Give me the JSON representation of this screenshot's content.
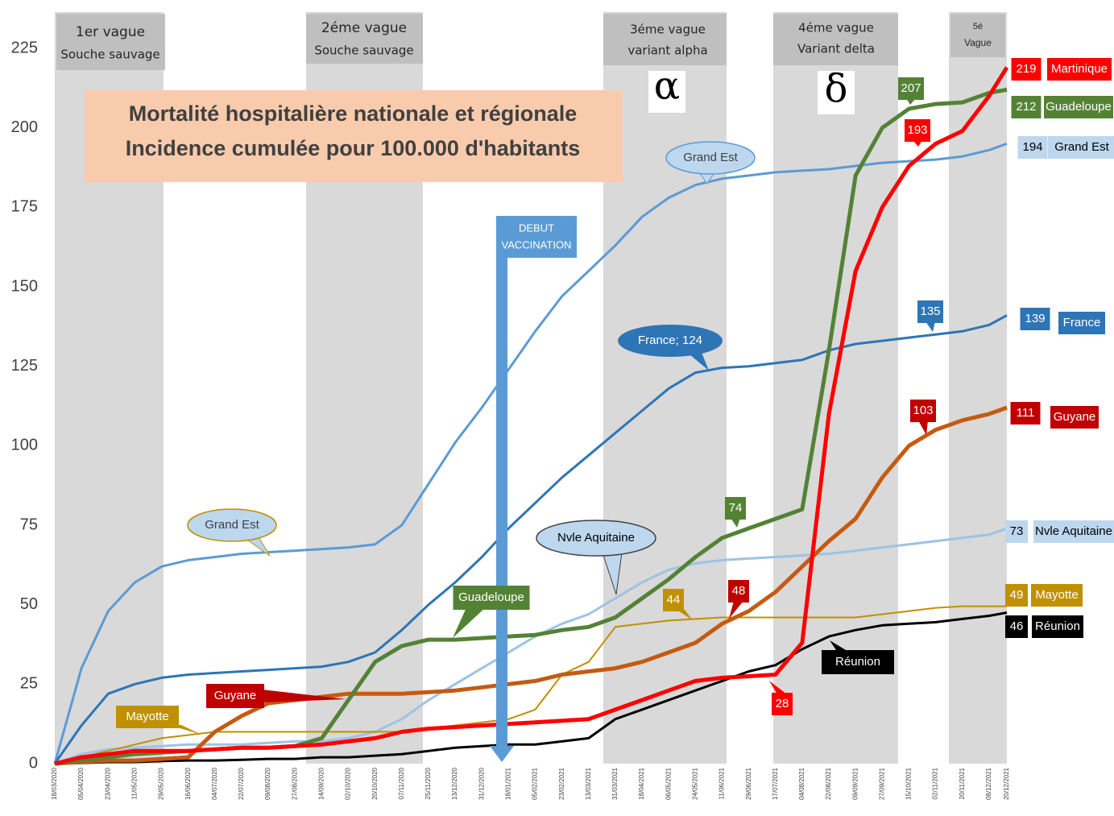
{
  "chart_data": {
    "type": "line",
    "title": [
      "Mortalité hospitalière nationale et régionale",
      "Incidence cumulée pour 100.000 d'habitants"
    ],
    "waves": [
      {
        "label": "1er vague",
        "sublabel": "Souche sauvage"
      },
      {
        "label": "2éme vague",
        "sublabel": "Souche sauvage"
      },
      {
        "label": "3éme vague",
        "sublabel": "variant alpha"
      },
      {
        "label": "4éme vague",
        "sublabel": "Variant delta"
      },
      {
        "label": "5é",
        "sublabel": "Vague"
      }
    ],
    "variants": [
      "α",
      "δ"
    ],
    "vaccination": [
      "DEBUT",
      "VACCINATION"
    ],
    "annotations": [
      "207",
      "193",
      "135",
      "74",
      "48",
      "44",
      "28",
      "103",
      "France; 124",
      "219",
      "212",
      "194",
      "139",
      "111",
      "73",
      "49",
      "46"
    ],
    "categories": [
      "18/03/2020",
      "05/04/2020",
      "23/04/2020",
      "11/05/2020",
      "29/05/2020",
      "16/06/2020",
      "04/07/2020",
      "22/07/2020",
      "09/08/2020",
      "27/08/2020",
      "14/09/2020",
      "02/10/2020",
      "20/10/2020",
      "07/11/2020",
      "25/11/2020",
      "13/12/2020",
      "31/12/2020",
      "18/01/2021",
      "05/02/2021",
      "23/02/2021",
      "13/03/2021",
      "31/03/2021",
      "18/04/2021",
      "06/05/2021",
      "24/05/2021",
      "11/06/2021",
      "29/06/2021",
      "17/07/2021",
      "04/08/2021",
      "22/08/2021",
      "09/09/2021",
      "27/09/2021",
      "15/10/2021",
      "02/11/2021",
      "20/11/2021",
      "08/12/2021",
      "20/12/2021"
    ],
    "series": [
      {
        "name": "Martinique",
        "color": "#ff0000",
        "values": [
          0,
          2,
          3,
          4,
          4,
          4,
          4.5,
          5,
          5,
          5.5,
          6,
          7,
          8,
          10,
          11,
          11.5,
          12,
          12.5,
          13,
          13.5,
          14,
          17,
          20,
          23,
          26,
          27,
          27.5,
          28,
          38,
          110,
          155,
          175,
          188,
          195,
          199,
          210,
          219
        ]
      },
      {
        "name": "Guadeloupe",
        "color": "#548235",
        "values": [
          0,
          1,
          2,
          3,
          3.5,
          4,
          4.5,
          5,
          5,
          5.5,
          8,
          20,
          32,
          37,
          39,
          39,
          39.5,
          40,
          40.5,
          42,
          43,
          46,
          52,
          58,
          65,
          71,
          74,
          77,
          80,
          130,
          185,
          200,
          206,
          207.5,
          208,
          211,
          212
        ]
      },
      {
        "name": "Grand Est",
        "color": "#5b9bd5",
        "values": [
          0,
          30,
          48,
          57,
          62,
          64,
          65,
          66,
          66.5,
          67,
          67.5,
          68,
          69,
          75,
          88,
          101,
          112,
          124,
          136,
          147,
          155,
          163,
          172,
          178,
          182,
          184,
          185,
          186,
          186.5,
          187,
          188,
          189,
          189.5,
          190,
          191,
          193,
          195
        ]
      },
      {
        "name": "France",
        "color": "#2e75b6",
        "values": [
          0,
          12,
          22,
          25,
          27,
          28,
          28.5,
          29,
          29.5,
          30,
          30.5,
          32,
          35,
          42,
          50,
          57,
          65,
          74,
          82,
          90,
          97,
          104,
          111,
          118,
          123,
          124.5,
          125,
          126,
          127,
          130,
          132,
          133,
          134,
          135,
          136,
          138,
          141
        ]
      },
      {
        "name": "Guyane",
        "color": "#c55a11",
        "values": [
          0,
          0.5,
          1,
          1,
          1.5,
          2,
          10,
          15,
          19,
          20,
          21,
          22,
          22,
          22,
          22.5,
          23,
          24,
          25,
          26,
          28,
          29,
          30,
          32,
          35,
          38,
          44,
          48,
          54,
          62,
          70,
          77,
          90,
          100,
          105,
          108,
          110,
          112
        ]
      },
      {
        "name": "Nvle Aquitaine",
        "color": "#9dc3e6",
        "values": [
          0,
          3,
          4.5,
          5,
          5.5,
          6,
          6,
          6,
          6.5,
          7,
          7,
          8,
          10,
          14,
          20,
          25,
          30,
          35,
          40,
          44,
          47,
          52,
          57,
          61,
          63,
          64,
          64.5,
          65,
          65.5,
          66,
          67,
          68,
          69,
          70,
          71,
          72,
          74
        ]
      },
      {
        "name": "Mayotte",
        "color": "#bf9000",
        "values": [
          0,
          2,
          4,
          6,
          8,
          9,
          10,
          10,
          10,
          10,
          10,
          10,
          10,
          10,
          11,
          12,
          13,
          14,
          17,
          28,
          32,
          43,
          44,
          45,
          45.5,
          46,
          46,
          46,
          46,
          46,
          46,
          47,
          48,
          49,
          49.5,
          49.5,
          49.5
        ]
      },
      {
        "name": "Réunion",
        "color": "#000000",
        "values": [
          0,
          0.2,
          0.5,
          0.5,
          0.8,
          1,
          1,
          1.2,
          1.5,
          1.5,
          2,
          2,
          2.5,
          3,
          4,
          5,
          5.5,
          6,
          6,
          7,
          8,
          14,
          17,
          20,
          23,
          26,
          29,
          31,
          36,
          40,
          42,
          43.5,
          44,
          44.5,
          45.5,
          46.5,
          47.5
        ]
      }
    ],
    "ylim": [
      0,
      225
    ],
    "yticks": [
      0,
      25,
      50,
      75,
      100,
      125,
      150,
      175,
      200,
      225
    ],
    "grid": false
  }
}
